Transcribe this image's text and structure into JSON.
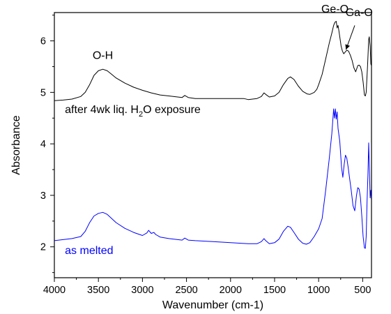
{
  "chart_data": {
    "type": "line",
    "title": "",
    "xlabel": "Wavenumber (cm-1)",
    "ylabel": "Absorbance",
    "xlim": [
      4000,
      400
    ],
    "ylim": [
      1.4,
      6.55
    ],
    "x_reversed": true,
    "x_ticks": [
      4000,
      3500,
      3000,
      2500,
      2000,
      1500,
      1000,
      500
    ],
    "x_tick_labels": [
      "4000",
      "3500",
      "3000",
      "2500",
      "2000",
      "1500",
      "1000",
      "500"
    ],
    "y_ticks": [
      2,
      3,
      4,
      5,
      6
    ],
    "y_tick_labels": [
      "2",
      "3",
      "4",
      "5",
      "6"
    ],
    "grid": false,
    "legend": "none",
    "series": [
      {
        "name": "after 4wk liq. H2O exposure",
        "color": "#000000",
        "points": [
          [
            4000,
            4.84
          ],
          [
            3900,
            4.85
          ],
          [
            3800,
            4.87
          ],
          [
            3700,
            4.92
          ],
          [
            3650,
            5.0
          ],
          [
            3600,
            5.15
          ],
          [
            3550,
            5.33
          ],
          [
            3500,
            5.42
          ],
          [
            3450,
            5.45
          ],
          [
            3400,
            5.42
          ],
          [
            3350,
            5.35
          ],
          [
            3300,
            5.28
          ],
          [
            3200,
            5.18
          ],
          [
            3100,
            5.1
          ],
          [
            3000,
            5.04
          ],
          [
            2900,
            4.99
          ],
          [
            2800,
            4.95
          ],
          [
            2700,
            4.93
          ],
          [
            2600,
            4.91
          ],
          [
            2550,
            4.9
          ],
          [
            2520,
            4.94
          ],
          [
            2480,
            4.9
          ],
          [
            2400,
            4.88
          ],
          [
            2200,
            4.88
          ],
          [
            2000,
            4.88
          ],
          [
            1850,
            4.88
          ],
          [
            1800,
            4.86
          ],
          [
            1750,
            4.87
          ],
          [
            1700,
            4.88
          ],
          [
            1650,
            4.92
          ],
          [
            1620,
            4.99
          ],
          [
            1600,
            4.96
          ],
          [
            1560,
            4.91
          ],
          [
            1500,
            4.93
          ],
          [
            1450,
            5.0
          ],
          [
            1400,
            5.15
          ],
          [
            1350,
            5.27
          ],
          [
            1320,
            5.3
          ],
          [
            1280,
            5.25
          ],
          [
            1230,
            5.12
          ],
          [
            1180,
            5.02
          ],
          [
            1130,
            4.97
          ],
          [
            1100,
            4.96
          ],
          [
            1050,
            5.0
          ],
          [
            1020,
            5.06
          ],
          [
            1000,
            5.15
          ],
          [
            960,
            5.35
          ],
          [
            920,
            5.65
          ],
          [
            880,
            5.95
          ],
          [
            850,
            6.15
          ],
          [
            830,
            6.3
          ],
          [
            815,
            6.36
          ],
          [
            800,
            6.38
          ],
          [
            790,
            6.25
          ],
          [
            780,
            6.3
          ],
          [
            770,
            6.2
          ],
          [
            760,
            6.08
          ],
          [
            745,
            5.9
          ],
          [
            730,
            5.8
          ],
          [
            715,
            5.75
          ],
          [
            700,
            5.78
          ],
          [
            680,
            5.82
          ],
          [
            660,
            5.8
          ],
          [
            640,
            5.72
          ],
          [
            620,
            5.62
          ],
          [
            600,
            5.48
          ],
          [
            580,
            5.4
          ],
          [
            555,
            5.52
          ],
          [
            540,
            5.53
          ],
          [
            525,
            5.5
          ],
          [
            510,
            5.4
          ],
          [
            495,
            5.2
          ],
          [
            480,
            4.95
          ],
          [
            470,
            4.93
          ],
          [
            460,
            5.0
          ],
          [
            445,
            5.5
          ],
          [
            432,
            6.03
          ],
          [
            425,
            6.08
          ],
          [
            415,
            5.9
          ],
          [
            407,
            5.55
          ],
          [
            400,
            5.52
          ]
        ]
      },
      {
        "name": "as melted",
        "color": "#0000ff",
        "points": [
          [
            4000,
            2.12
          ],
          [
            3900,
            2.14
          ],
          [
            3800,
            2.16
          ],
          [
            3700,
            2.2
          ],
          [
            3650,
            2.3
          ],
          [
            3600,
            2.47
          ],
          [
            3550,
            2.6
          ],
          [
            3500,
            2.65
          ],
          [
            3450,
            2.67
          ],
          [
            3400,
            2.63
          ],
          [
            3350,
            2.55
          ],
          [
            3300,
            2.47
          ],
          [
            3200,
            2.36
          ],
          [
            3100,
            2.28
          ],
          [
            3000,
            2.22
          ],
          [
            2950,
            2.27
          ],
          [
            2930,
            2.32
          ],
          [
            2900,
            2.26
          ],
          [
            2870,
            2.28
          ],
          [
            2850,
            2.24
          ],
          [
            2800,
            2.19
          ],
          [
            2700,
            2.16
          ],
          [
            2600,
            2.14
          ],
          [
            2550,
            2.13
          ],
          [
            2520,
            2.17
          ],
          [
            2480,
            2.13
          ],
          [
            2400,
            2.12
          ],
          [
            2200,
            2.1
          ],
          [
            2000,
            2.08
          ],
          [
            1800,
            2.06
          ],
          [
            1700,
            2.06
          ],
          [
            1650,
            2.1
          ],
          [
            1620,
            2.16
          ],
          [
            1600,
            2.12
          ],
          [
            1560,
            2.06
          ],
          [
            1500,
            2.08
          ],
          [
            1450,
            2.15
          ],
          [
            1400,
            2.3
          ],
          [
            1350,
            2.4
          ],
          [
            1320,
            2.38
          ],
          [
            1280,
            2.28
          ],
          [
            1230,
            2.15
          ],
          [
            1180,
            2.07
          ],
          [
            1140,
            2.05
          ],
          [
            1100,
            2.08
          ],
          [
            1050,
            2.2
          ],
          [
            1000,
            2.35
          ],
          [
            960,
            2.55
          ],
          [
            920,
            3.1
          ],
          [
            880,
            3.7
          ],
          [
            850,
            4.2
          ],
          [
            830,
            4.68
          ],
          [
            820,
            4.5
          ],
          [
            810,
            4.68
          ],
          [
            800,
            4.48
          ],
          [
            790,
            4.62
          ],
          [
            780,
            4.3
          ],
          [
            760,
            4.05
          ],
          [
            740,
            3.55
          ],
          [
            725,
            3.35
          ],
          [
            710,
            3.6
          ],
          [
            695,
            3.78
          ],
          [
            680,
            3.72
          ],
          [
            665,
            3.55
          ],
          [
            650,
            3.35
          ],
          [
            630,
            3.1
          ],
          [
            610,
            2.8
          ],
          [
            590,
            2.7
          ],
          [
            570,
            3.0
          ],
          [
            555,
            3.15
          ],
          [
            540,
            3.12
          ],
          [
            525,
            2.95
          ],
          [
            510,
            2.6
          ],
          [
            495,
            2.2
          ],
          [
            480,
            1.98
          ],
          [
            470,
            1.97
          ],
          [
            460,
            2.2
          ],
          [
            450,
            2.9
          ],
          [
            440,
            3.4
          ],
          [
            432,
            4.02
          ],
          [
            425,
            3.6
          ],
          [
            415,
            2.95
          ],
          [
            407,
            3.1
          ],
          [
            400,
            2.9
          ]
        ]
      }
    ],
    "annotations": [
      {
        "text": "O-H",
        "x": 3450,
        "y": 5.65
      },
      {
        "text": "Ge-O",
        "x": 815,
        "y": 6.55
      },
      {
        "text": "Ga-O",
        "x": 540,
        "y": 6.48
      }
    ],
    "series_labels": [
      {
        "parts": [
          "after 4wk liq. H",
          "2",
          "O exposure"
        ],
        "x": 3880,
        "y": 4.6,
        "color": "#000000"
      },
      {
        "text": "as melted",
        "x": 3880,
        "y": 1.86,
        "color": "#0000ff"
      }
    ]
  }
}
